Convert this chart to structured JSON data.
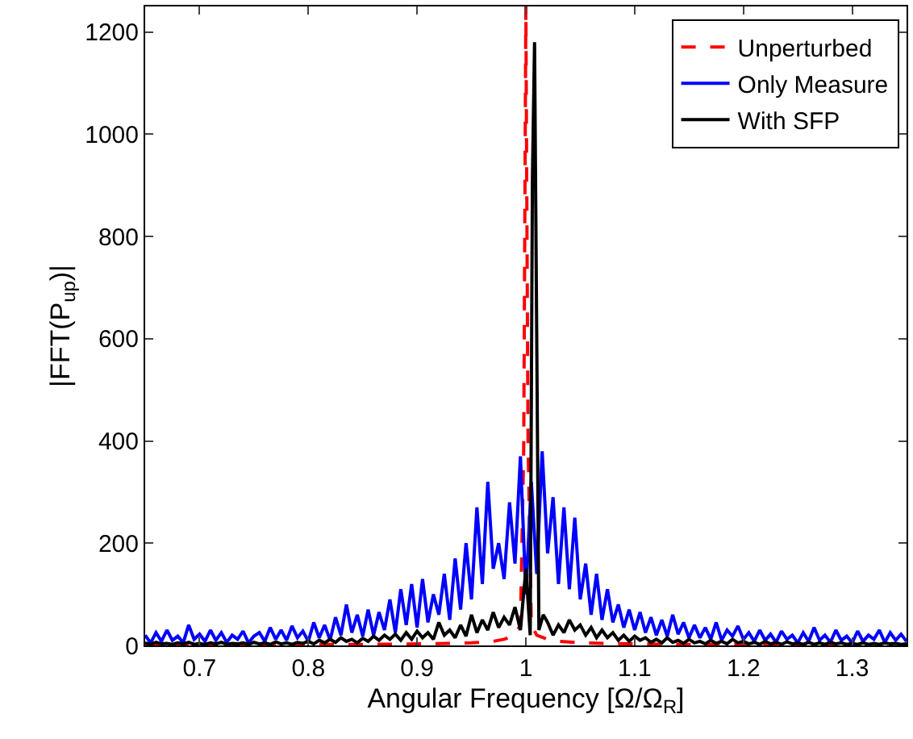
{
  "chart_data": {
    "type": "line",
    "xlabel": "Angular Frequency [Ω/Ω$_{R}$]",
    "ylabel": "|FFT(P$_{up}$)|",
    "xlim": [
      0.65,
      1.35
    ],
    "xticks": [
      {
        "value": 0.7,
        "label": "0.7"
      },
      {
        "value": 0.8,
        "label": "0.8"
      },
      {
        "value": 0.9,
        "label": "0.9"
      },
      1,
      {
        "value": 1.1,
        "label": "1.1"
      },
      {
        "value": 1.2,
        "label": "1.2"
      },
      {
        "value": 1.3,
        "label": "1.3"
      }
    ],
    "ylim": [
      0,
      1250
    ],
    "yticks": [
      0,
      200,
      400,
      600,
      800,
      1000,
      1200
    ],
    "grid": false,
    "legend": "top right",
    "marker": "none",
    "series": [
      {
        "name": "Unperturbed",
        "color": "#ff0000",
        "line_style": "dashed",
        "x": [
          0.65,
          0.7,
          0.75,
          0.8,
          0.85,
          0.9,
          0.93,
          0.95,
          0.97,
          0.98,
          0.99,
          0.995,
          0.998,
          1.0,
          1.002,
          1.005,
          1.01,
          1.02,
          1.03,
          1.05,
          1.1,
          1.15,
          1.2,
          1.25,
          1.3
        ],
        "values": [
          1,
          1,
          1,
          2,
          2,
          3,
          4,
          5,
          8,
          12,
          20,
          40,
          380,
          1250,
          400,
          40,
          20,
          12,
          8,
          5,
          3,
          2,
          2,
          1,
          1
        ]
      },
      {
        "name": "Only Measure",
        "color": "#0000ff",
        "line_style": "solid",
        "x": [
          0.65,
          0.655,
          0.66,
          0.665,
          0.67,
          0.675,
          0.68,
          0.685,
          0.69,
          0.695,
          0.7,
          0.705,
          0.71,
          0.715,
          0.72,
          0.725,
          0.73,
          0.735,
          0.74,
          0.745,
          0.75,
          0.755,
          0.76,
          0.765,
          0.77,
          0.775,
          0.78,
          0.785,
          0.79,
          0.795,
          0.8,
          0.805,
          0.81,
          0.815,
          0.82,
          0.825,
          0.83,
          0.835,
          0.84,
          0.845,
          0.85,
          0.855,
          0.86,
          0.865,
          0.87,
          0.875,
          0.88,
          0.885,
          0.89,
          0.895,
          0.9,
          0.905,
          0.91,
          0.915,
          0.92,
          0.925,
          0.93,
          0.935,
          0.94,
          0.945,
          0.95,
          0.955,
          0.96,
          0.965,
          0.97,
          0.975,
          0.98,
          0.985,
          0.99,
          0.995,
          1.0,
          1.005,
          1.01,
          1.015,
          1.02,
          1.025,
          1.03,
          1.035,
          1.04,
          1.045,
          1.05,
          1.055,
          1.06,
          1.065,
          1.07,
          1.075,
          1.08,
          1.085,
          1.09,
          1.095,
          1.1,
          1.105,
          1.11,
          1.115,
          1.12,
          1.125,
          1.13,
          1.135,
          1.14,
          1.145,
          1.15,
          1.155,
          1.16,
          1.165,
          1.17,
          1.175,
          1.18,
          1.185,
          1.19,
          1.195,
          1.2,
          1.205,
          1.21,
          1.215,
          1.22,
          1.225,
          1.23,
          1.235,
          1.24,
          1.245,
          1.25,
          1.255,
          1.26,
          1.265,
          1.27,
          1.275,
          1.28,
          1.285,
          1.29,
          1.295,
          1.3,
          1.305,
          1.31,
          1.315,
          1.32,
          1.325,
          1.33,
          1.335,
          1.34,
          1.345,
          1.35
        ],
        "values": [
          20,
          5,
          25,
          8,
          30,
          10,
          18,
          5,
          40,
          12,
          22,
          8,
          30,
          10,
          25,
          6,
          20,
          12,
          28,
          5,
          18,
          25,
          8,
          35,
          12,
          30,
          10,
          38,
          15,
          28,
          8,
          45,
          15,
          40,
          10,
          55,
          20,
          80,
          25,
          60,
          18,
          70,
          20,
          65,
          30,
          90,
          25,
          110,
          40,
          120,
          35,
          130,
          45,
          100,
          60,
          140,
          50,
          170,
          70,
          200,
          90,
          270,
          120,
          320,
          150,
          200,
          130,
          280,
          160,
          370,
          100,
          320,
          140,
          380,
          180,
          290,
          120,
          270,
          110,
          250,
          90,
          160,
          60,
          140,
          50,
          110,
          45,
          80,
          35,
          70,
          30,
          65,
          25,
          55,
          20,
          50,
          18,
          60,
          22,
          45,
          15,
          40,
          15,
          35,
          12,
          45,
          10,
          30,
          18,
          38,
          12,
          25,
          8,
          30,
          10,
          22,
          6,
          28,
          12,
          20,
          5,
          25,
          8,
          35,
          10,
          20,
          6,
          30,
          10,
          18,
          5,
          28,
          8,
          20,
          12,
          30,
          6,
          25,
          10,
          22,
          8
        ]
      },
      {
        "name": "With SFP",
        "color": "#000000",
        "line_style": "solid",
        "x": [
          0.65,
          0.655,
          0.66,
          0.665,
          0.67,
          0.675,
          0.68,
          0.685,
          0.69,
          0.695,
          0.7,
          0.705,
          0.71,
          0.715,
          0.72,
          0.725,
          0.73,
          0.735,
          0.74,
          0.745,
          0.75,
          0.755,
          0.76,
          0.765,
          0.77,
          0.775,
          0.78,
          0.785,
          0.79,
          0.795,
          0.8,
          0.805,
          0.81,
          0.815,
          0.82,
          0.825,
          0.83,
          0.835,
          0.84,
          0.845,
          0.85,
          0.855,
          0.86,
          0.865,
          0.87,
          0.875,
          0.88,
          0.885,
          0.89,
          0.895,
          0.9,
          0.905,
          0.91,
          0.915,
          0.92,
          0.925,
          0.93,
          0.935,
          0.94,
          0.945,
          0.95,
          0.955,
          0.96,
          0.965,
          0.97,
          0.975,
          0.98,
          0.985,
          0.99,
          0.995,
          1.0,
          1.004,
          1.006,
          1.008,
          1.01,
          1.012,
          1.016,
          1.02,
          1.025,
          1.03,
          1.035,
          1.04,
          1.045,
          1.05,
          1.055,
          1.06,
          1.065,
          1.07,
          1.075,
          1.08,
          1.085,
          1.09,
          1.095,
          1.1,
          1.105,
          1.11,
          1.115,
          1.12,
          1.125,
          1.13,
          1.135,
          1.14,
          1.145,
          1.15,
          1.155,
          1.16,
          1.165,
          1.17,
          1.175,
          1.18,
          1.185,
          1.19,
          1.195,
          1.2,
          1.205,
          1.21,
          1.215,
          1.22,
          1.225,
          1.23,
          1.235,
          1.24,
          1.245,
          1.25,
          1.255,
          1.26,
          1.265,
          1.27,
          1.275,
          1.28,
          1.285,
          1.29,
          1.295,
          1.3,
          1.305,
          1.31,
          1.315,
          1.32,
          1.325,
          1.33,
          1.335,
          1.34,
          1.345,
          1.35
        ],
        "values": [
          5,
          2,
          6,
          3,
          4,
          2,
          5,
          3,
          6,
          2,
          4,
          2,
          5,
          3,
          6,
          2,
          4,
          3,
          5,
          2,
          6,
          3,
          5,
          2,
          7,
          3,
          5,
          2,
          6,
          4,
          8,
          3,
          10,
          5,
          12,
          6,
          15,
          8,
          12,
          5,
          14,
          8,
          18,
          10,
          20,
          12,
          22,
          10,
          25,
          12,
          28,
          15,
          25,
          12,
          45,
          20,
          30,
          15,
          40,
          18,
          60,
          25,
          50,
          30,
          65,
          35,
          55,
          40,
          75,
          30,
          150,
          20,
          910,
          1180,
          600,
          30,
          60,
          45,
          20,
          40,
          25,
          50,
          30,
          40,
          20,
          35,
          15,
          30,
          15,
          25,
          10,
          20,
          8,
          18,
          10,
          15,
          6,
          12,
          5,
          15,
          6,
          10,
          4,
          12,
          5,
          8,
          3,
          10,
          4,
          8,
          3,
          12,
          5,
          8,
          3,
          6,
          2,
          8,
          3,
          6,
          2,
          7,
          3,
          5,
          2,
          6,
          2,
          5,
          2,
          6,
          3,
          5,
          2,
          4,
          2,
          5,
          2,
          4,
          2,
          5,
          3,
          4,
          2,
          3
        ]
      }
    ]
  }
}
